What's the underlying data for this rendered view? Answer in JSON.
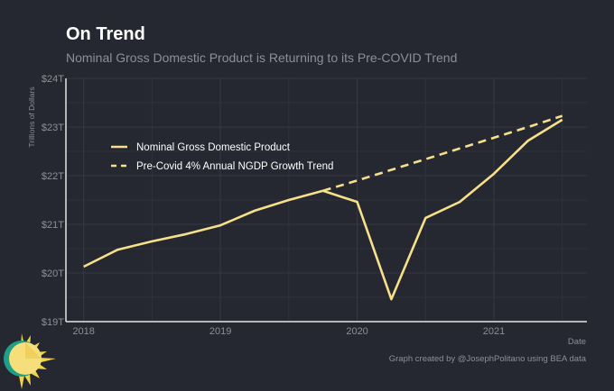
{
  "title": "On Trend",
  "subtitle": "Nominal Gross Domestic Product is Returning to its Pre-COVID Trend",
  "footer": "Graph created by @JosephPolitano using BEA data",
  "chart_data": {
    "type": "line",
    "title": "On Trend",
    "xlabel": "Date",
    "ylabel": "Trillions of Dollars",
    "xlim": [
      2017.87,
      2021.68
    ],
    "ylim": [
      19,
      24
    ],
    "x_ticks": [
      2018,
      2019,
      2020,
      2021
    ],
    "x_tick_labels": [
      "2018",
      "2019",
      "2020",
      "2021"
    ],
    "y_ticks": [
      19,
      20,
      21,
      22,
      23,
      24
    ],
    "y_tick_labels": [
      "$19T",
      "$20T",
      "$21T",
      "$22T",
      "$23T",
      "$24T"
    ],
    "grid": true,
    "legend_position": "top-left",
    "series": [
      {
        "name": "Nominal Gross Domestic Product",
        "style": "solid",
        "color": "#f7e08a",
        "x": [
          2018,
          2018.25,
          2018.5,
          2018.75,
          2019,
          2019.25,
          2019.5,
          2019.75,
          2020,
          2020.25,
          2020.5,
          2020.75,
          2021,
          2021.25,
          2021.5
        ],
        "values": [
          20.13,
          20.48,
          20.65,
          20.8,
          20.98,
          21.28,
          21.5,
          21.69,
          21.46,
          19.46,
          21.13,
          21.46,
          22.04,
          22.72,
          23.15
        ]
      },
      {
        "name": "Pre-Covid 4% Annual NGDP Growth Trend",
        "style": "dashed",
        "color": "#f7e08a",
        "x": [
          2019.75,
          2020,
          2020.25,
          2020.5,
          2020.75,
          2021,
          2021.25,
          2021.5
        ],
        "values": [
          21.69,
          21.9,
          22.12,
          22.34,
          22.56,
          22.78,
          23.0,
          23.23
        ]
      }
    ]
  }
}
